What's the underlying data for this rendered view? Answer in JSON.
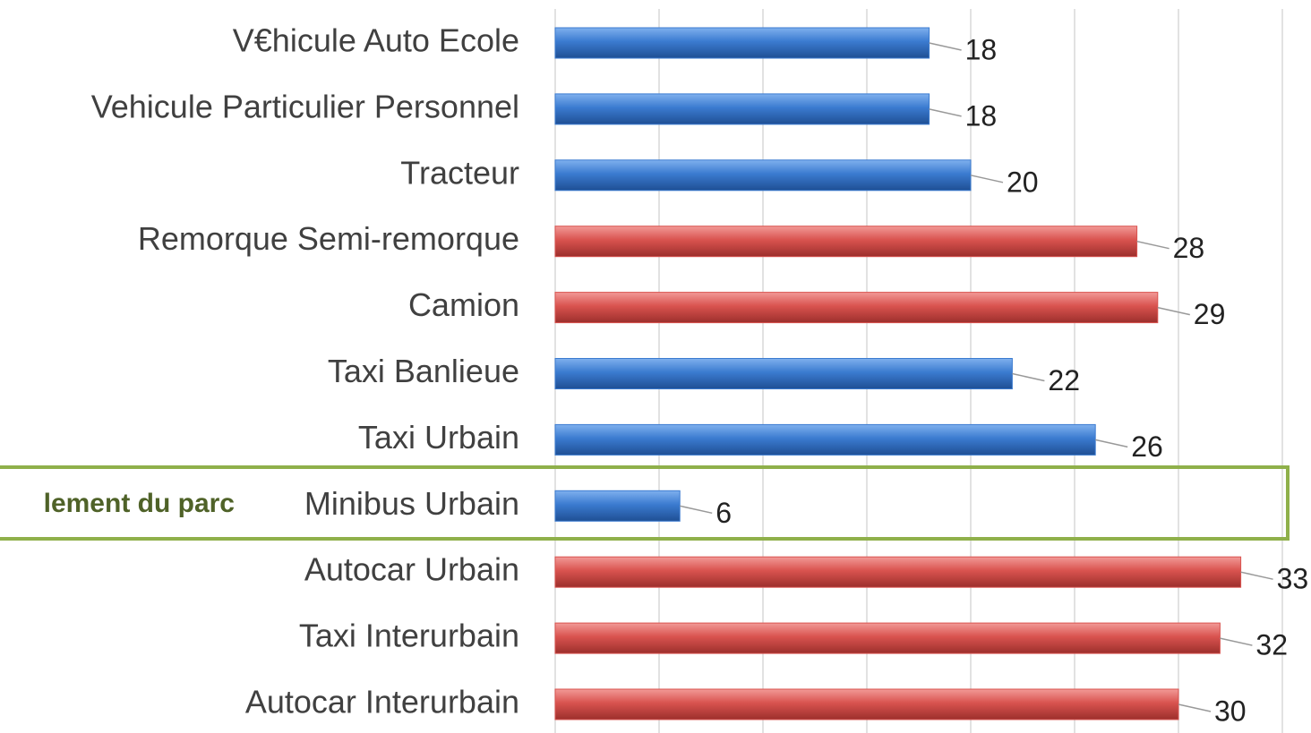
{
  "chart_data": {
    "type": "hbar",
    "categories": [
      "V€hicule Auto Ecole",
      "Vehicule Particulier Personnel",
      "Tracteur",
      "Remorque Semi-remorque",
      "Camion",
      "Taxi Banlieue",
      "Taxi Urbain",
      "Minibus Urbain",
      "Autocar Urbain",
      "Taxi Interurbain",
      "Autocar Interurbain"
    ],
    "values": [
      18,
      18,
      20,
      28,
      29,
      22,
      26,
      6,
      33,
      32,
      30
    ],
    "colors": [
      "#3b7bd0",
      "#3b7bd0",
      "#3b7bd0",
      "#d9534f",
      "#d9534f",
      "#3b7bd0",
      "#3b7bd0",
      "#3b7bd0",
      "#d9534f",
      "#d9534f",
      "#d9534f"
    ],
    "xlim": [
      0,
      35
    ],
    "xticks": [
      0,
      5,
      10,
      15,
      20,
      25,
      30,
      35
    ],
    "grid": true,
    "annotation": "lement du parc"
  }
}
